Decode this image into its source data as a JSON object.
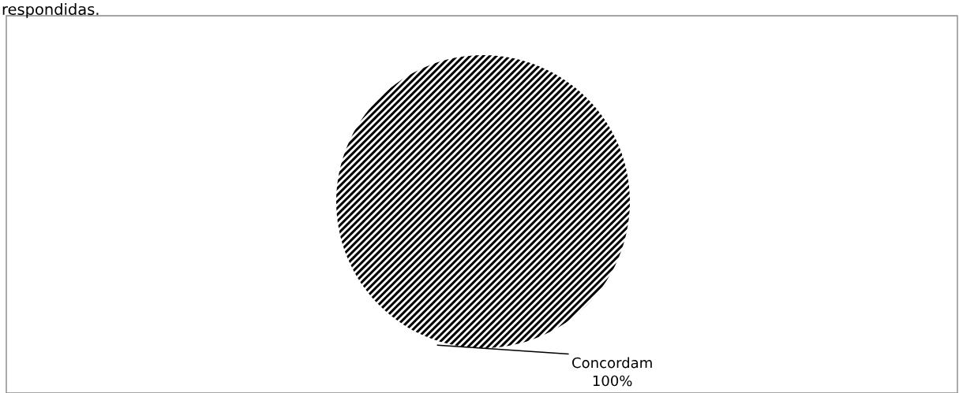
{
  "chart_data": {
    "type": "pie",
    "categories": [
      "Concordam"
    ],
    "values": [
      100
    ],
    "value_labels": [
      "100%"
    ],
    "colors": [
      "#000000"
    ],
    "annotations": [
      "respondidas."
    ]
  }
}
